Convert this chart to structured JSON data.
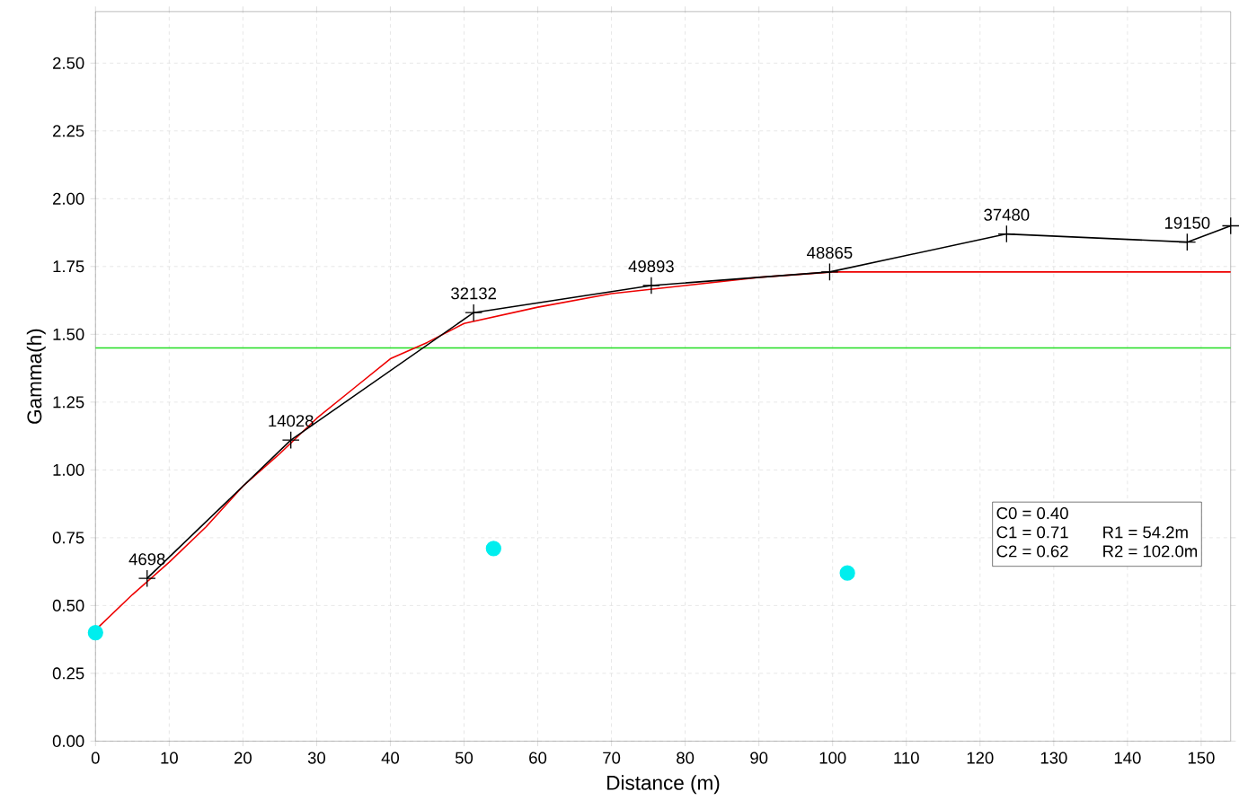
{
  "chart_data": {
    "type": "line",
    "xlabel": "Distance (m)",
    "ylabel": "Gamma(h)",
    "xlim": [
      0,
      154
    ],
    "ylim": [
      0,
      2.69
    ],
    "xticks": [
      0,
      10,
      20,
      30,
      40,
      50,
      60,
      70,
      80,
      90,
      100,
      110,
      120,
      130,
      140,
      150
    ],
    "yticks": [
      {
        "value": 0,
        "label": "0.00"
      },
      {
        "value": 0.25,
        "label": "0.25"
      },
      {
        "value": 0.5,
        "label": "0.50"
      },
      {
        "value": 0.75,
        "label": "0.75"
      },
      {
        "value": 1.0,
        "label": "1.00"
      },
      {
        "value": 1.25,
        "label": "1.25"
      },
      {
        "value": 1.5,
        "label": "1.50"
      },
      {
        "value": 1.75,
        "label": "1.75"
      },
      {
        "value": 2.0,
        "label": "2.00"
      },
      {
        "value": 2.25,
        "label": "2.25"
      },
      {
        "value": 2.5,
        "label": "2.50"
      }
    ],
    "grid": true,
    "ref_lines": [
      {
        "axis": "y",
        "value": 1.45,
        "color": "#22dd22"
      }
    ],
    "series": [
      {
        "color": "#ee0000",
        "marker": "none",
        "x": [
          0,
          5,
          10,
          15,
          20,
          25,
          30,
          35,
          40,
          45,
          50,
          55,
          60,
          70,
          80,
          90,
          100,
          154
        ],
        "values": [
          0.41,
          0.54,
          0.66,
          0.79,
          0.94,
          1.06,
          1.19,
          1.3,
          1.41,
          1.47,
          1.54,
          1.57,
          1.6,
          1.65,
          1.68,
          1.71,
          1.73,
          1.73
        ]
      },
      {
        "color": "#000000",
        "marker": "cross",
        "x": [
          7.0,
          26.5,
          51.3,
          75.4,
          99.6,
          123.6,
          148.1,
          154
        ],
        "values": [
          0.6,
          1.11,
          1.58,
          1.68,
          1.73,
          1.87,
          1.84,
          1.9
        ]
      },
      {
        "type": "scatter",
        "color": "#00eeee",
        "marker": "circle",
        "x": [
          0,
          54.0,
          102.0
        ],
        "values": [
          0.4,
          0.71,
          0.62
        ]
      }
    ],
    "annotations": [
      "C0 = 0.40",
      "C1 = 0.71",
      "R1 = 54.2m",
      "C2 = 0.62",
      "R2 = 102.0m",
      {
        "text": "4698",
        "x": 7.0,
        "y": 0.6
      },
      {
        "text": "14028",
        "x": 26.5,
        "y": 1.11
      },
      {
        "text": "32132",
        "x": 51.3,
        "y": 1.58
      },
      {
        "text": "49893",
        "x": 75.4,
        "y": 1.68
      },
      {
        "text": "48865",
        "x": 99.6,
        "y": 1.73
      },
      {
        "text": "37480",
        "x": 123.6,
        "y": 1.87
      },
      {
        "text": "19150",
        "x": 148.1,
        "y": 1.84
      }
    ]
  }
}
